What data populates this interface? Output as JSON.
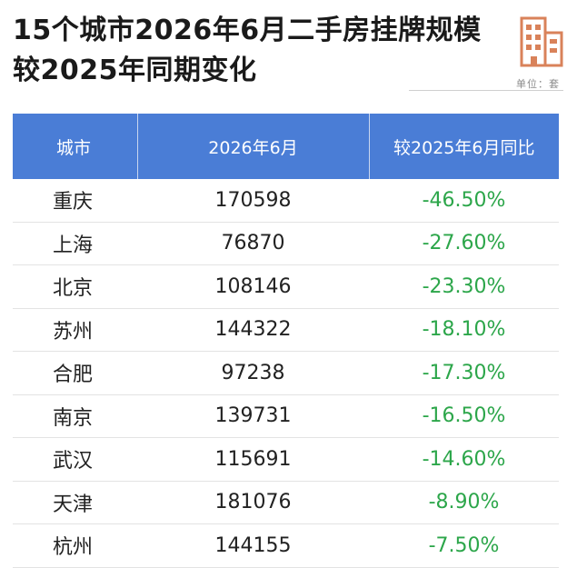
{
  "title": "15个城市2026年6月二手房挂牌规模较2025年同期变化",
  "unit": "单位：套",
  "logo_icon": "building-icon",
  "colors": {
    "header_bg": "#4a7dd6",
    "negative_change": "#2ca64a",
    "logo": "#d9825a"
  },
  "table": {
    "headers": [
      "城市",
      "2026年6月",
      "较2025年6月同比"
    ],
    "rows": [
      {
        "city": "重庆",
        "listings": "170598",
        "yoy": "-46.50%"
      },
      {
        "city": "上海",
        "listings": "76870",
        "yoy": "-27.60%"
      },
      {
        "city": "北京",
        "listings": "108146",
        "yoy": "-23.30%"
      },
      {
        "city": "苏州",
        "listings": "144322",
        "yoy": "-18.10%"
      },
      {
        "city": "合肥",
        "listings": "97238",
        "yoy": "-17.30%"
      },
      {
        "city": "南京",
        "listings": "139731",
        "yoy": "-16.50%"
      },
      {
        "city": "武汉",
        "listings": "115691",
        "yoy": "-14.60%"
      },
      {
        "city": "天津",
        "listings": "181076",
        "yoy": "-8.90%"
      },
      {
        "city": "杭州",
        "listings": "144155",
        "yoy": "-7.50%"
      }
    ]
  }
}
